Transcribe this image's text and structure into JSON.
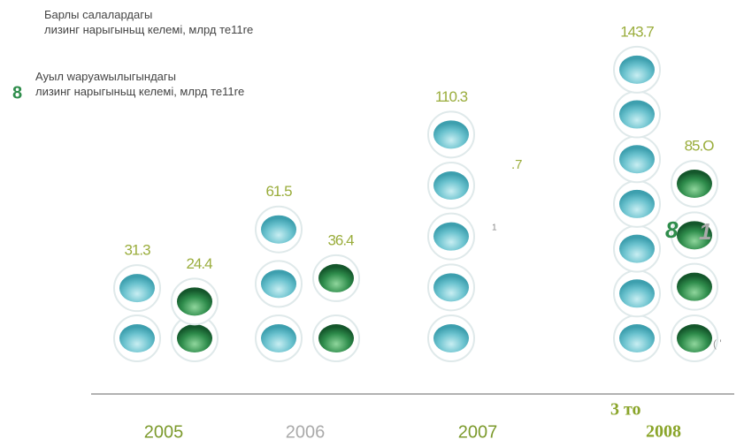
{
  "chart_data": {
    "type": "bubble-column",
    "categories": [
      "2005",
      "2006",
      "2007",
      "2008"
    ],
    "series": [
      {
        "name": "Барлы салалардагы\nлизинг нарыгыньщ келемі, млрд те11re",
        "color": "#6cc3cf",
        "values": [
          31.3,
          61.5,
          110.3,
          143.7
        ]
      },
      {
        "name": "Ауыл wapyawылыгындагы\nлизинг нарыгыньщ келемі, млрд те11re",
        "color": "#2f8d4c",
        "values": [
          24.4,
          36.4,
          null,
          85.0
        ],
        "value_labels": [
          "24.4",
          "36.4",
          null,
          "85.O"
        ]
      }
    ],
    "annotations": [
      "8",
      ".7",
      "1",
      "8",
      "1",
      "3 то",
      "( '"
    ]
  }
}
